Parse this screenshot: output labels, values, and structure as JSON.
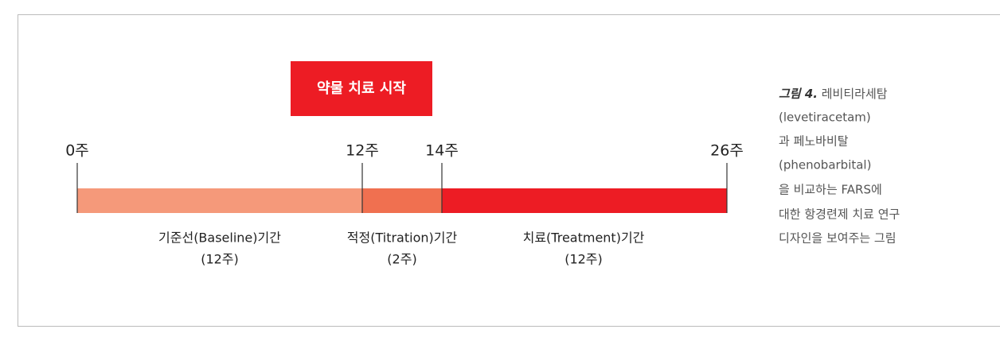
{
  "start_box": "약물 치료 시작",
  "timeline": {
    "ticks": [
      "0주",
      "12주",
      "14주",
      "26주"
    ],
    "phases": [
      {
        "name": "기준선(Baseline)기간",
        "duration": "(12주)"
      },
      {
        "name": "적정(Titration)기간",
        "duration": "(2주)"
      },
      {
        "name": "치료(Treatment)기간",
        "duration": "(12주)"
      }
    ]
  },
  "caption": {
    "label": "그림 4.",
    "lines": [
      "레비티라세탐",
      "(levetiracetam)",
      "과 페노바비탈",
      "(phenobarbital)",
      "을 비교하는 FARS에",
      "대한 항경련제 치료 연구",
      "디자인을 보여주는 그림"
    ]
  }
}
